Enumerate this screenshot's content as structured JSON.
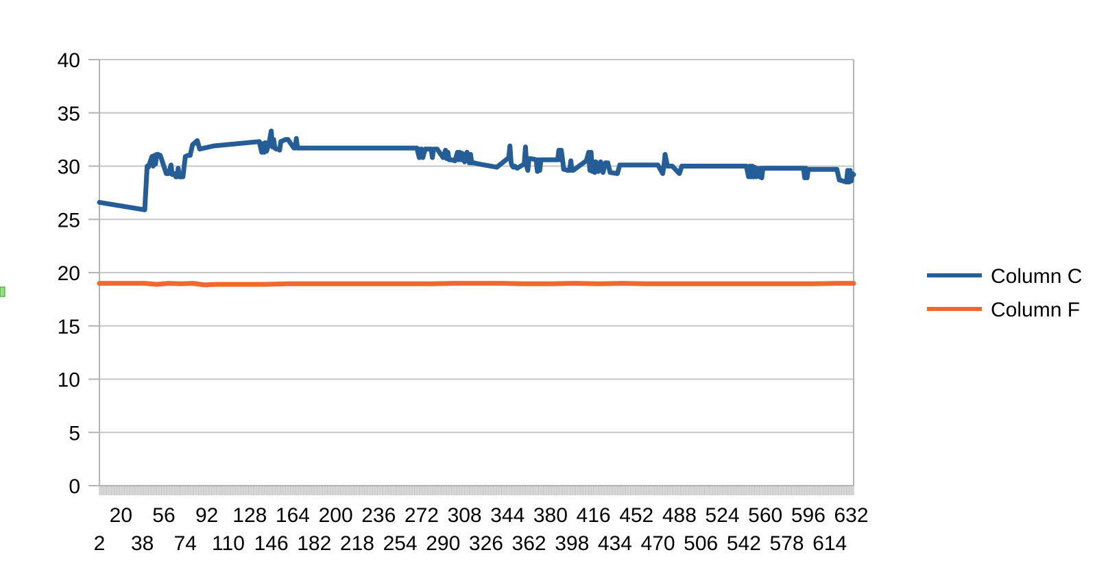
{
  "chart_data": {
    "type": "line",
    "title": "",
    "xlabel": "",
    "ylabel": "",
    "ylim": [
      0,
      40
    ],
    "yticks": [
      0,
      5,
      10,
      15,
      20,
      25,
      30,
      35,
      40
    ],
    "xlim": [
      2,
      634
    ],
    "xticklabels_upper": [
      "20",
      "56",
      "92",
      "128",
      "164",
      "200",
      "236",
      "272",
      "308",
      "344",
      "380",
      "416",
      "452",
      "488",
      "524",
      "560",
      "596",
      "632"
    ],
    "xticklabels_lower": [
      "2",
      "38",
      "74",
      "110",
      "146",
      "182",
      "218",
      "254",
      "290",
      "326",
      "362",
      "398",
      "434",
      "470",
      "506",
      "542",
      "578",
      "614"
    ],
    "grid": true,
    "legend_position": "right",
    "colors": {
      "column_c": "#255D97",
      "column_f": "#F0682D",
      "grid": "#C6C6C6",
      "axis": "#B3B3B3",
      "marker": "#8FE37C"
    },
    "series": [
      {
        "name": "Column C",
        "color": "#255D97",
        "x": [
          2,
          40,
          42,
          43,
          46,
          47,
          48,
          49,
          50,
          51,
          53,
          58,
          60,
          62,
          63,
          65,
          66,
          67,
          68,
          69,
          70,
          72,
          74,
          76,
          78,
          80,
          84,
          86,
          90,
          94,
          98,
          136,
          138,
          139,
          140,
          141,
          142,
          144,
          146,
          147,
          148,
          149,
          150,
          152,
          153,
          154,
          156,
          158,
          160,
          165,
          166,
          167,
          168,
          170,
          190,
          200,
          210,
          220,
          230,
          240,
          250,
          260,
          268,
          270,
          271,
          272,
          273,
          275,
          280,
          281,
          282,
          283,
          285,
          290,
          292,
          293,
          294,
          295,
          297,
          300,
          302,
          303,
          304,
          305,
          306,
          308,
          310,
          312,
          313,
          314,
          316,
          320,
          335,
          345,
          346,
          347,
          348,
          349,
          350,
          352,
          358,
          359,
          360,
          361,
          362,
          364,
          368,
          369,
          370,
          371,
          372,
          374,
          378,
          386,
          387,
          388,
          389,
          390,
          391,
          392,
          394,
          396,
          397,
          398,
          399,
          410,
          412,
          413,
          414,
          415,
          416,
          417,
          418,
          420,
          422,
          424,
          426,
          428,
          430,
          436,
          438,
          440,
          442,
          446,
          448,
          450,
          470,
          474,
          475,
          476,
          478,
          479,
          480,
          482,
          488,
          490,
          491,
          492,
          494,
          520,
          544,
          546,
          547,
          548,
          549,
          550,
          551,
          552,
          553,
          555,
          556,
          557,
          558,
          560,
          562,
          590,
          592,
          593,
          594,
          595,
          596,
          597,
          598,
          600,
          620,
          622,
          628,
          629,
          630,
          631,
          632,
          633,
          634
        ],
        "values": [
          26.6,
          25.9,
          30.0,
          29.9,
          30.9,
          30.0,
          31.0,
          30.2,
          31.1,
          31.1,
          31.0,
          29.3,
          29.3,
          30.1,
          29.2,
          29.3,
          29.0,
          29.0,
          29.8,
          29.0,
          29.0,
          29.0,
          30.9,
          31.0,
          31.0,
          32.0,
          32.4,
          31.6,
          31.7,
          31.8,
          31.9,
          32.3,
          31.3,
          32.1,
          31.3,
          32.2,
          31.4,
          32.1,
          33.3,
          31.8,
          32.5,
          31.7,
          31.6,
          31.6,
          31.5,
          32.3,
          32.4,
          32.5,
          32.5,
          31.7,
          31.7,
          32.6,
          31.7,
          31.7,
          31.7,
          31.7,
          31.7,
          31.7,
          31.7,
          31.7,
          31.7,
          31.7,
          31.7,
          30.8,
          31.6,
          31.6,
          30.8,
          31.6,
          31.6,
          30.8,
          31.6,
          31.6,
          31.6,
          30.8,
          31.5,
          30.7,
          31.3,
          30.6,
          30.6,
          30.5,
          31.3,
          30.6,
          31.3,
          30.6,
          31.2,
          30.4,
          31.3,
          30.3,
          31.1,
          30.3,
          30.3,
          30.2,
          29.9,
          30.8,
          31.9,
          30.3,
          30.0,
          29.9,
          30.0,
          29.8,
          30.2,
          31.8,
          30.0,
          29.6,
          30.7,
          30.7,
          30.6,
          29.5,
          30.6,
          29.6,
          30.6,
          30.6,
          30.6,
          30.6,
          31.5,
          30.6,
          31.5,
          30.7,
          29.7,
          29.7,
          29.6,
          29.6,
          30.5,
          29.6,
          29.6,
          30.5,
          31.3,
          29.6,
          31.3,
          29.5,
          30.4,
          29.4,
          30.4,
          29.5,
          30.4,
          29.4,
          30.3,
          30.3,
          29.4,
          29.3,
          30.1,
          30.1,
          30.1,
          30.1,
          30.1,
          30.1,
          30.1,
          29.3,
          30.0,
          31.1,
          30.0,
          30.0,
          30.0,
          30.0,
          29.3,
          30.0,
          30.0,
          30.0,
          30.0,
          30.0,
          30.0,
          29.0,
          30.0,
          29.0,
          30.0,
          29.0,
          29.9,
          29.0,
          29.8,
          29.0,
          29.8,
          28.9,
          29.8,
          29.8,
          29.8,
          29.8,
          29.8,
          28.9,
          29.8,
          28.9,
          29.7,
          29.7,
          29.7,
          29.7,
          29.7,
          28.7,
          28.5,
          29.6,
          28.5,
          29.6,
          28.6,
          29.3,
          29.2
        ]
      },
      {
        "name": "Column F",
        "color": "#F0682D",
        "x": [
          2,
          20,
          40,
          50,
          60,
          70,
          80,
          90,
          100,
          120,
          140,
          160,
          180,
          200,
          220,
          240,
          260,
          280,
          300,
          320,
          340,
          360,
          380,
          400,
          420,
          440,
          460,
          480,
          500,
          520,
          540,
          560,
          580,
          600,
          620,
          634
        ],
        "values": [
          19.0,
          19.0,
          19.0,
          18.9,
          19.0,
          18.95,
          19.0,
          18.85,
          18.9,
          18.9,
          18.9,
          18.95,
          18.95,
          18.95,
          18.95,
          18.95,
          18.95,
          18.95,
          19.0,
          19.0,
          19.0,
          18.95,
          18.95,
          19.0,
          18.95,
          19.0,
          18.95,
          18.95,
          18.95,
          18.95,
          18.95,
          18.95,
          18.95,
          18.95,
          19.0,
          19.0
        ]
      }
    ]
  }
}
